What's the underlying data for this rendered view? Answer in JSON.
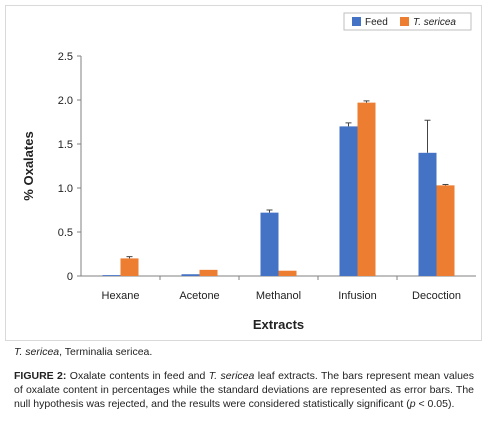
{
  "chart_data": {
    "type": "bar",
    "categories": [
      "Hexane",
      "Acetone",
      "Methanol",
      "Infusion",
      "Decoction"
    ],
    "series": [
      {
        "name": "Feed",
        "color": "#4472C4",
        "values": [
          0.01,
          0.02,
          0.72,
          1.7,
          1.4
        ],
        "errors": [
          0.0,
          0.0,
          0.03,
          0.04,
          0.37
        ]
      },
      {
        "name": "T. sericea",
        "color": "#ED7D31",
        "values": [
          0.2,
          0.07,
          0.06,
          1.97,
          1.03
        ],
        "errors": [
          0.02,
          0.0,
          0.0,
          0.02,
          0.01
        ]
      }
    ],
    "xlabel": "Extracts",
    "ylabel": "% Oxalates",
    "ylim": [
      0,
      2.5
    ],
    "yticks": [
      "0",
      "0.5",
      "1.0",
      "1.5",
      "2.0",
      "2.5"
    ],
    "grid": false,
    "legend": "top-right"
  },
  "footnote": {
    "abbr": "T. sericea",
    "text": ", Terminalia sericea."
  },
  "caption": {
    "label": "FIGURE 2:",
    "part1": " Oxalate contents in feed and ",
    "species": "T. sericea",
    "part2": " leaf extracts. The bars represent mean values of oxalate content in percentages while the standard deviations are represented as error bars. The null hypothesis was rejected, and the results were considered statistically significant (",
    "pvar": "p",
    "part3": " < 0.05)."
  }
}
